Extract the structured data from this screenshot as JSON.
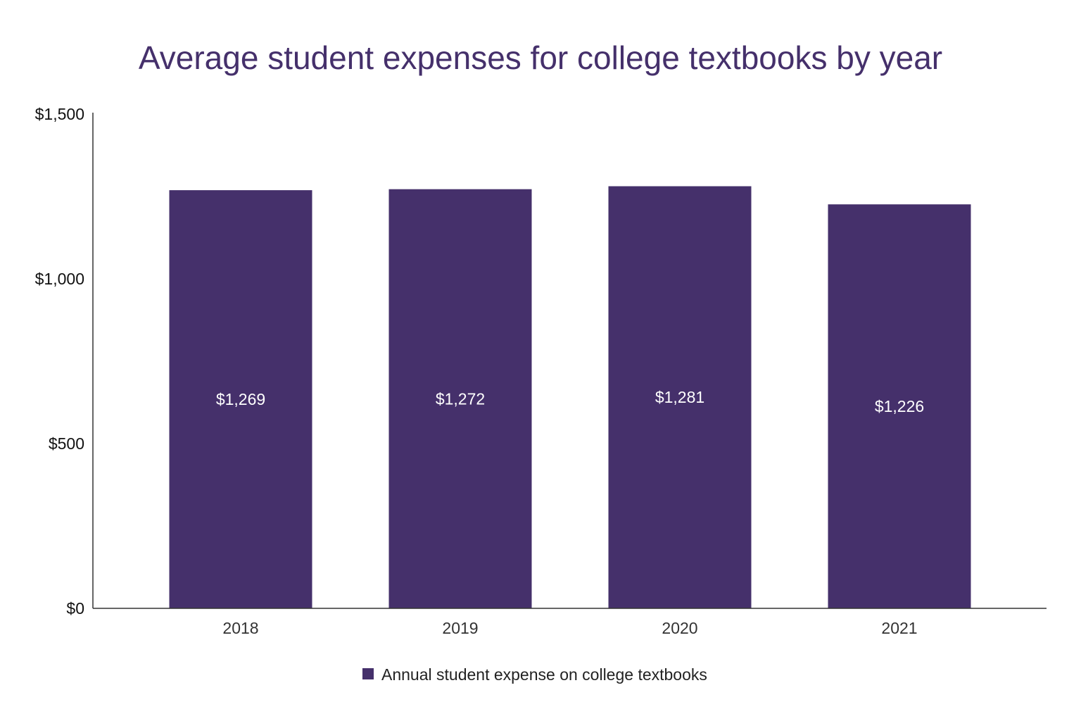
{
  "chart_data": {
    "type": "bar",
    "title": "Average student expenses for college textbooks by year",
    "categories": [
      "2018",
      "2019",
      "2020",
      "2021"
    ],
    "series": [
      {
        "name": "Annual student expense on college textbooks",
        "values": [
          1269,
          1272,
          1281,
          1226
        ]
      }
    ],
    "data_labels": [
      "$1,269",
      "$1,272",
      "$1,281",
      "$1,226"
    ],
    "yticks": [
      0,
      500,
      1000,
      1500
    ],
    "ytick_labels": [
      "$0",
      "$500",
      "$1,000",
      "$1,500"
    ],
    "ylim": [
      0,
      1500
    ],
    "xlabel": "",
    "ylabel": "",
    "grid": false,
    "legend_position": "bottom",
    "colors": {
      "bar": "#45306b",
      "title": "#45306b"
    }
  }
}
